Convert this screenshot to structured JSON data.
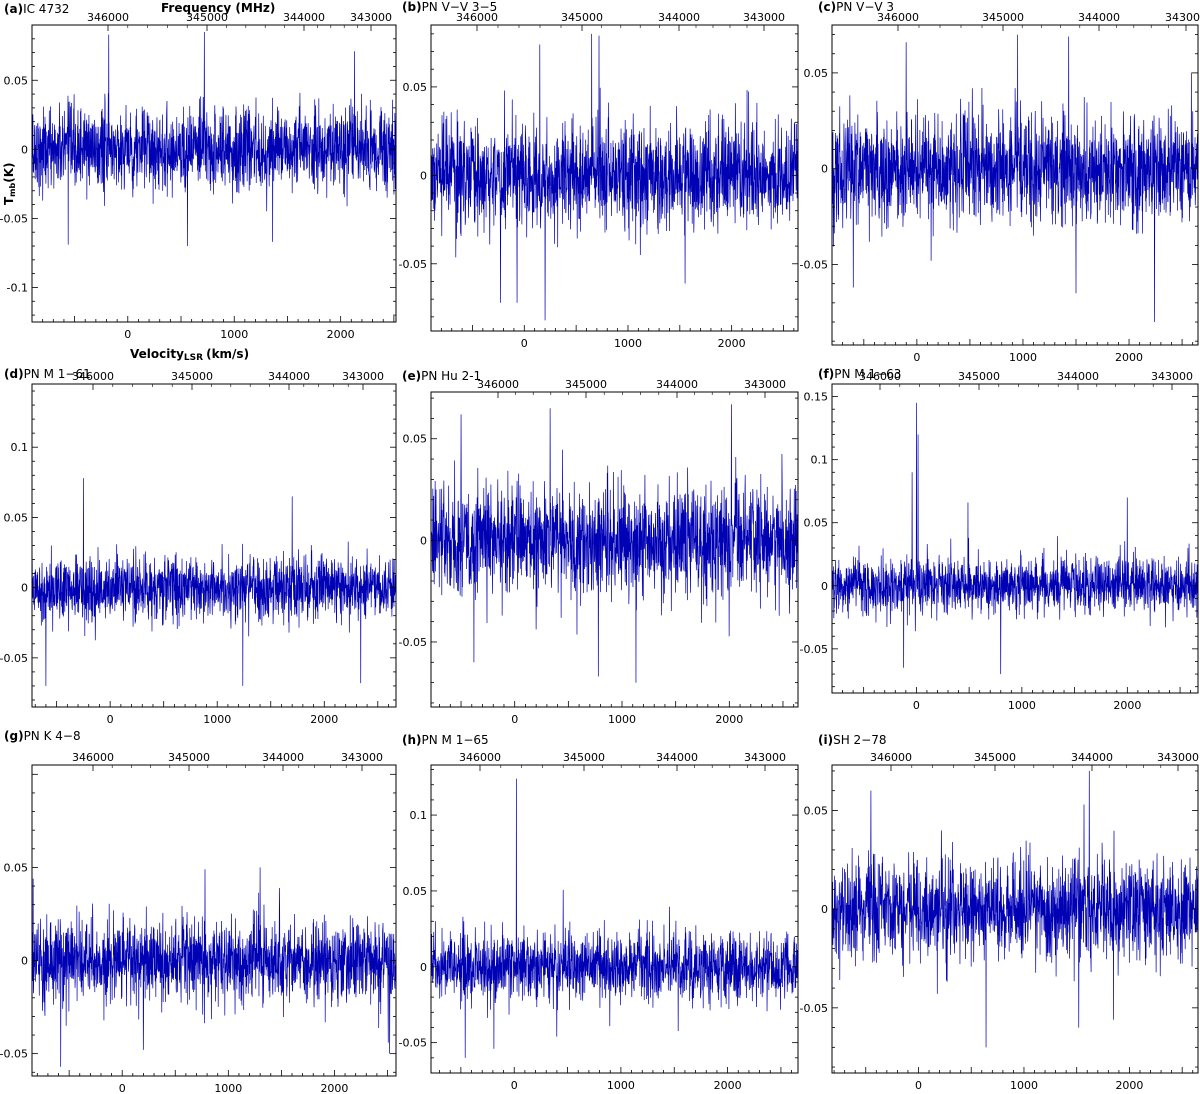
{
  "figure": {
    "ylabel": "T",
    "ylabel_sub": "mb",
    "ylabel_unit": "(K)",
    "top_axis_label": "Frequency (MHz)",
    "bottom_axis_label": "Velocity",
    "bottom_axis_label_sub": "LSR",
    "bottom_axis_label_unit": "(km/s)"
  },
  "colors": {
    "spectrum": "#0000b4",
    "axes": "#000000"
  },
  "chart_data": [
    {
      "type": "line",
      "tag": "(a)",
      "title": "IC 4732",
      "xlim": [
        -900,
        2520
      ],
      "ylim": [
        -0.125,
        0.09
      ],
      "x_ticks": [
        0,
        1000,
        2000
      ],
      "y_ticks": [
        -0.1,
        -0.05,
        0,
        0.05
      ],
      "y_tick_labels": [
        "-0.1",
        "-0.05",
        "0",
        "0.05"
      ],
      "top_ticks": [
        346000,
        345000,
        344000,
        343000
      ],
      "series": {
        "noise": 0.024,
        "baseline": 0.0,
        "n_points": 1600,
        "spikes": [
          [
            -180,
            0.083
          ],
          [
            720,
            0.085
          ],
          [
            2130,
            0.071
          ],
          [
            -560,
            -0.069
          ],
          [
            560,
            -0.07
          ],
          [
            1360,
            -0.067
          ]
        ]
      }
    },
    {
      "type": "line",
      "tag": "(b)",
      "title": "PN V−V 3−5",
      "xlim": [
        -900,
        2640
      ],
      "ylim": [
        -0.088,
        0.085
      ],
      "x_ticks": [
        0,
        1000,
        2000
      ],
      "y_ticks": [
        -0.05,
        0,
        0.05
      ],
      "y_tick_labels": [
        "-0.05",
        "0",
        "0.05"
      ],
      "top_ticks": [
        346000,
        345000,
        344000,
        343000
      ],
      "series": {
        "noise": 0.024,
        "baseline": 0.0,
        "n_points": 1600,
        "spikes": [
          [
            650,
            0.08
          ],
          [
            720,
            0.079
          ],
          [
            150,
            0.074
          ],
          [
            -70,
            -0.072
          ],
          [
            200,
            -0.082
          ],
          [
            -230,
            -0.072
          ]
        ]
      }
    },
    {
      "type": "line",
      "tag": "(c)",
      "title": "PN V−V 3",
      "xlim": [
        -800,
        2650
      ],
      "ylim": [
        -0.092,
        0.075
      ],
      "x_ticks": [
        0,
        1000,
        2000
      ],
      "y_ticks": [
        -0.05,
        0,
        0.05
      ],
      "y_tick_labels": [
        "-0.05",
        "0",
        "0.05"
      ],
      "top_ticks": [
        346000,
        345000,
        344000,
        343000
      ],
      "series": {
        "noise": 0.023,
        "baseline": 0.0,
        "n_points": 1600,
        "spikes": [
          [
            950,
            0.07
          ],
          [
            1430,
            0.069
          ],
          [
            -100,
            0.066
          ],
          [
            2240,
            -0.08
          ],
          [
            -600,
            -0.062
          ],
          [
            1500,
            -0.065
          ]
        ]
      }
    },
    {
      "type": "line",
      "tag": "(d)",
      "title": "PN M 1−61",
      "xlim": [
        -730,
        2670
      ],
      "ylim": [
        -0.085,
        0.145
      ],
      "x_ticks": [
        0,
        1000,
        2000
      ],
      "y_ticks": [
        -0.05,
        0,
        0.05,
        0.1
      ],
      "y_tick_labels": [
        "-0.05",
        "0",
        "0.05",
        "0.1"
      ],
      "top_ticks": [
        346000,
        345000,
        344000,
        343000
      ],
      "series": {
        "noise": 0.019,
        "baseline": 0.0,
        "n_points": 1600,
        "spikes": [
          [
            -250,
            0.078
          ],
          [
            1700,
            0.065
          ],
          [
            -600,
            -0.07
          ],
          [
            1240,
            -0.07
          ],
          [
            2340,
            -0.068
          ]
        ]
      }
    },
    {
      "type": "line",
      "tag": "(e)",
      "title": "PN Hu 2-1",
      "xlim": [
        -780,
        2640
      ],
      "ylim": [
        -0.082,
        0.073
      ],
      "x_ticks": [
        0,
        1000,
        2000
      ],
      "y_ticks": [
        -0.05,
        0,
        0.05
      ],
      "y_tick_labels": [
        "-0.05",
        "0",
        "0.05"
      ],
      "top_ticks": [
        346000,
        345000,
        344000,
        343000
      ],
      "series": {
        "noise": 0.022,
        "baseline": 0.0,
        "n_points": 1600,
        "spikes": [
          [
            330,
            0.065
          ],
          [
            2020,
            0.067
          ],
          [
            -500,
            0.062
          ],
          [
            1130,
            -0.07
          ],
          [
            780,
            -0.067
          ],
          [
            -380,
            -0.06
          ]
        ]
      }
    },
    {
      "type": "line",
      "tag": "(f)",
      "title": "PN M 1−63",
      "xlim": [
        -800,
        2670
      ],
      "ylim": [
        -0.085,
        0.16
      ],
      "x_ticks": [
        0,
        1000,
        2000
      ],
      "y_ticks": [
        -0.05,
        0,
        0.05,
        0.1,
        0.15
      ],
      "y_tick_labels": [
        "-0.05",
        "0",
        "0.05",
        "0.1",
        "0.15"
      ],
      "top_ticks": [
        346000,
        345000,
        344000,
        343000
      ],
      "series": {
        "noise": 0.018,
        "baseline": 0.0,
        "n_points": 1600,
        "spikes": [
          [
            0,
            0.145
          ],
          [
            15,
            0.12
          ],
          [
            -40,
            0.09
          ],
          [
            490,
            0.066
          ],
          [
            2000,
            0.07
          ],
          [
            -120,
            -0.065
          ],
          [
            800,
            -0.07
          ]
        ]
      }
    },
    {
      "type": "line",
      "tag": "(g)",
      "title": "PN K 4−8",
      "xlim": [
        -850,
        2580
      ],
      "ylim": [
        -0.062,
        0.105
      ],
      "x_ticks": [
        0,
        1000,
        2000
      ],
      "y_ticks": [
        -0.05,
        0,
        0.05
      ],
      "y_tick_labels": [
        "-0.05",
        "0",
        "0.05"
      ],
      "top_ticks": [
        346000,
        345000,
        344000,
        343000
      ],
      "series": {
        "noise": 0.018,
        "baseline": 0.0,
        "n_points": 1600,
        "spikes": [
          [
            780,
            0.049
          ],
          [
            1300,
            0.05
          ],
          [
            -840,
            0.044
          ],
          [
            -580,
            -0.057
          ],
          [
            2520,
            -0.05
          ],
          [
            200,
            -0.048
          ]
        ]
      }
    },
    {
      "type": "line",
      "tag": "(h)",
      "title": "PN M 1−65",
      "xlim": [
        -780,
        2660
      ],
      "ylim": [
        -0.07,
        0.133
      ],
      "x_ticks": [
        0,
        1000,
        2000
      ],
      "y_ticks": [
        -0.05,
        0,
        0.05,
        0.1
      ],
      "y_tick_labels": [
        "-0.05",
        "0",
        "0.05",
        "0.1"
      ],
      "top_ticks": [
        346000,
        345000,
        344000,
        343000
      ],
      "series": {
        "noise": 0.018,
        "baseline": 0.0,
        "n_points": 1600,
        "spikes": [
          [
            20,
            0.124
          ],
          [
            -460,
            0.055
          ],
          [
            -460,
            -0.06
          ],
          [
            -190,
            -0.054
          ],
          [
            400,
            -0.046
          ]
        ]
      }
    },
    {
      "type": "line",
      "tag": "(i)",
      "title": "SH 2−78",
      "xlim": [
        -820,
        2650
      ],
      "ylim": [
        -0.083,
        0.073
      ],
      "x_ticks": [
        0,
        1000,
        2000
      ],
      "y_ticks": [
        -0.05,
        0,
        0.05
      ],
      "y_tick_labels": [
        "-0.05",
        "0",
        "0.05"
      ],
      "top_ticks": [
        346000,
        345000,
        344000,
        343000
      ],
      "series": {
        "noise": 0.02,
        "baseline": 0.0,
        "n_points": 1600,
        "spikes": [
          [
            1620,
            0.07
          ],
          [
            1570,
            0.053
          ],
          [
            -450,
            0.06
          ],
          [
            640,
            -0.07
          ],
          [
            1520,
            -0.06
          ],
          [
            1850,
            -0.056
          ]
        ]
      }
    }
  ]
}
